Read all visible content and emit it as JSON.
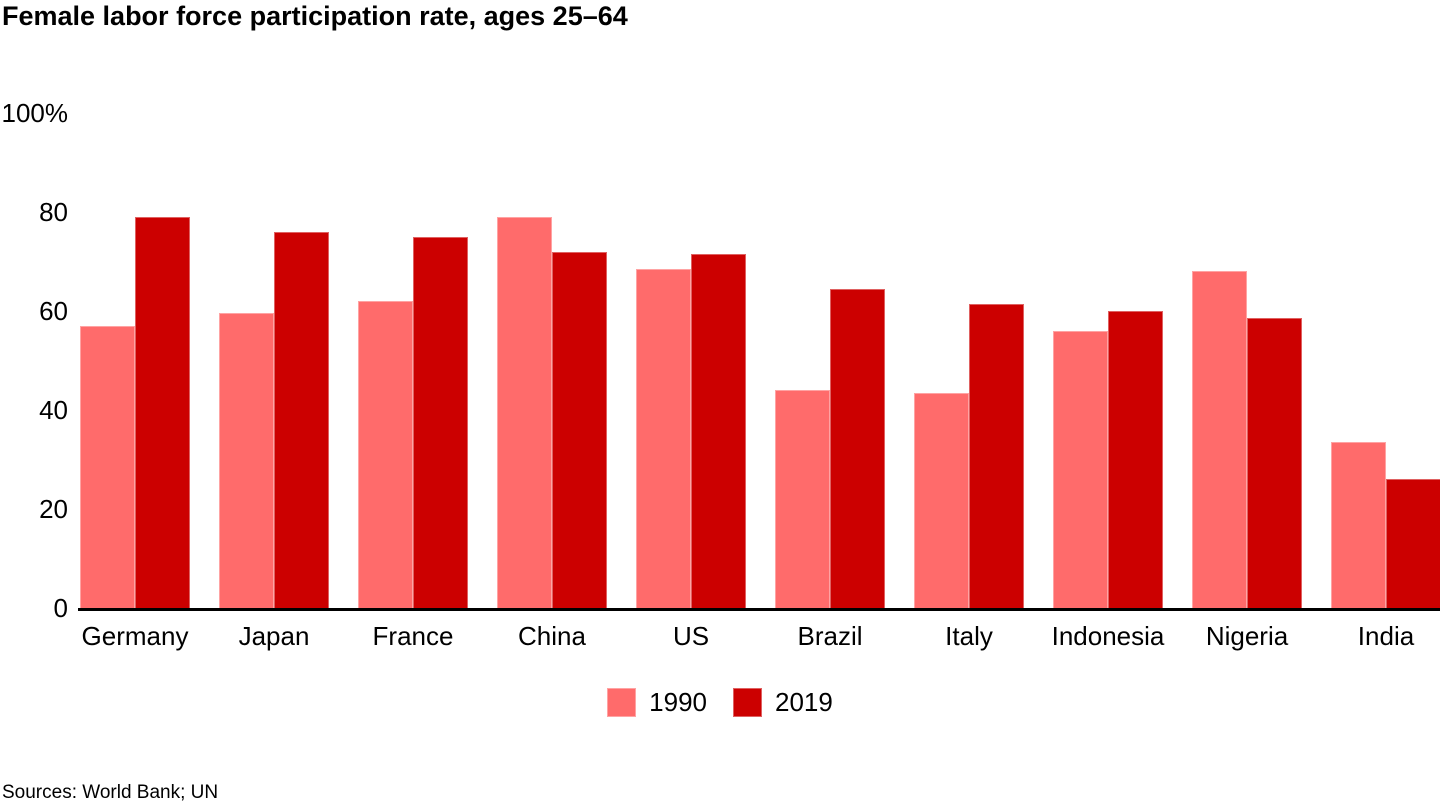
{
  "title": "Female labor force participation rate, ages 25–64",
  "source_note": "Sources: World Bank; UN",
  "colors": {
    "series_1990": "#FF6B6B",
    "series_2019": "#CC0000",
    "axis": "#000000",
    "text": "#000000",
    "background": "#FFFFFF"
  },
  "y_axis": {
    "labels": [
      {
        "value": 100,
        "label": "100%"
      },
      {
        "value": 80,
        "label": "80"
      },
      {
        "value": 60,
        "label": "60"
      },
      {
        "value": 40,
        "label": "40"
      },
      {
        "value": 20,
        "label": "20"
      },
      {
        "value": 0,
        "label": "0"
      }
    ]
  },
  "legend": [
    {
      "label": "1990",
      "color": "#FF6B6B"
    },
    {
      "label": "2019",
      "color": "#CC0000"
    }
  ],
  "chart_data": {
    "type": "bar",
    "title": "Female labor force participation rate, ages 25–64",
    "categories": [
      "Germany",
      "Japan",
      "France",
      "China",
      "US",
      "Brazil",
      "Italy",
      "Indonesia",
      "Nigeria",
      "India"
    ],
    "series": [
      {
        "name": "1990",
        "color": "#FF6B6B",
        "values": [
          57,
          59.5,
          62,
          79,
          68.5,
          44,
          43.5,
          56,
          68,
          33.5
        ]
      },
      {
        "name": "2019",
        "color": "#CC0000",
        "values": [
          79,
          76,
          75,
          72,
          71.5,
          64.5,
          61.5,
          60,
          58.5,
          26
        ]
      }
    ],
    "xlabel": "",
    "ylabel": "",
    "ylim": [
      0,
      100
    ],
    "yticks": [
      0,
      20,
      40,
      60,
      80,
      100
    ],
    "grid": false,
    "legend_position": "bottom-center",
    "source": "Sources: World Bank; UN"
  }
}
